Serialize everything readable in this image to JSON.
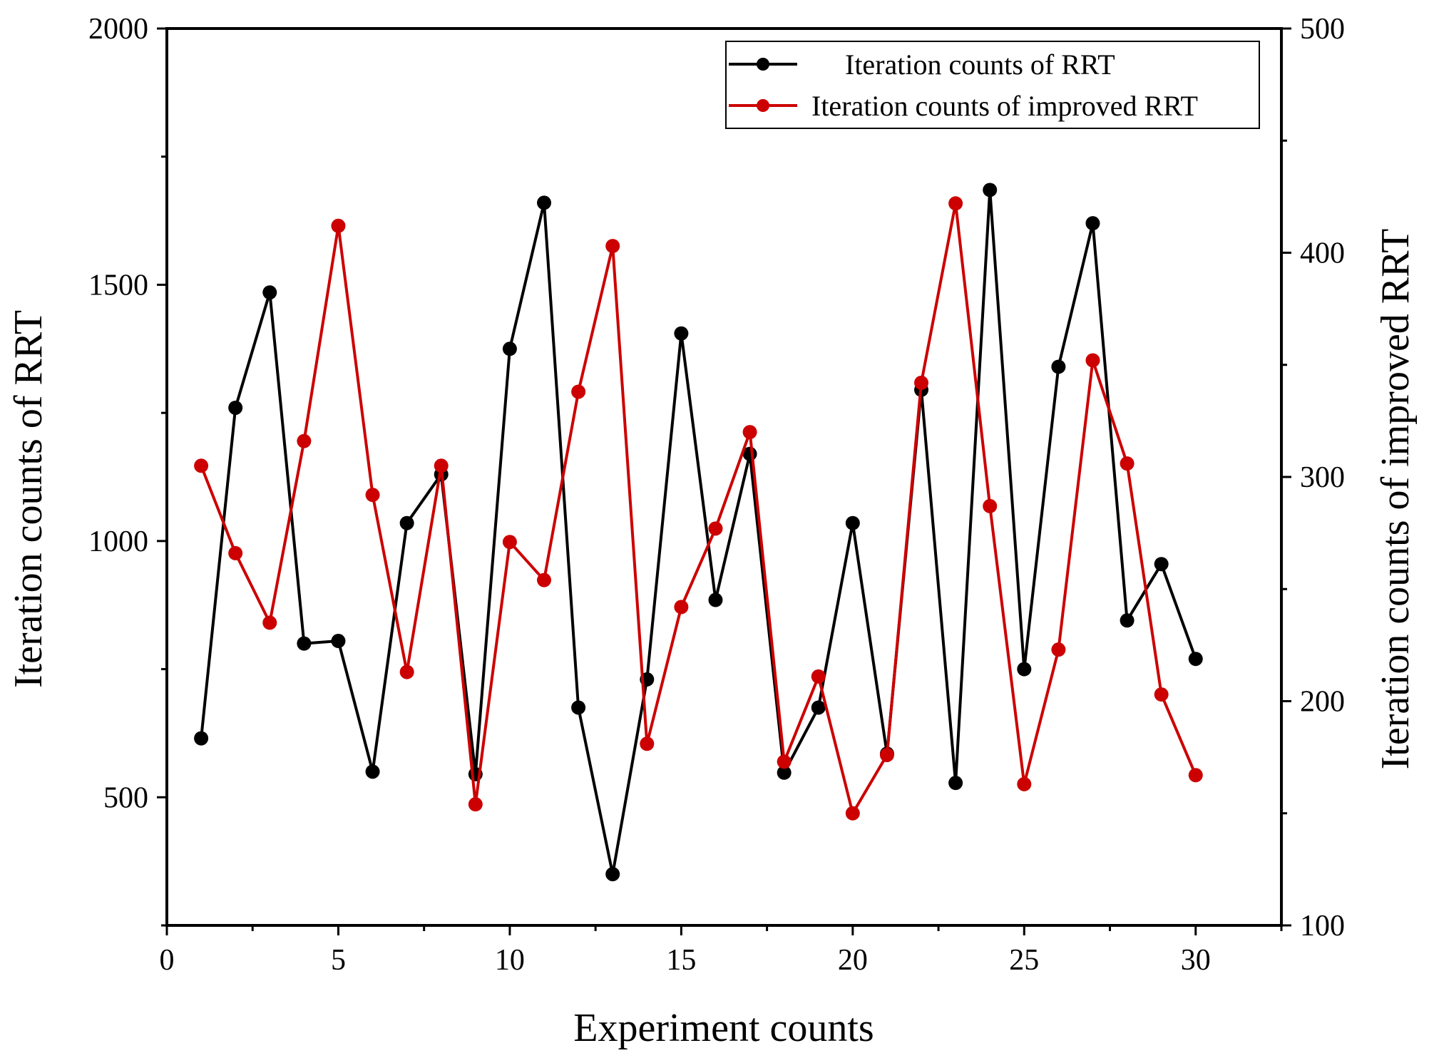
{
  "chart_data": {
    "type": "line",
    "title": "",
    "xlabel": "Experiment counts",
    "ylabel": "Iteration counts of RRT",
    "y2label": "Iteration counts of improved RRT",
    "xlim": [
      0,
      32.5
    ],
    "ylim": [
      250,
      2000
    ],
    "y2lim": [
      100,
      500
    ],
    "xticks": [
      0,
      5,
      10,
      15,
      20,
      25,
      30
    ],
    "yticks": [
      500,
      1000,
      1500,
      2000
    ],
    "y2ticks": [
      100,
      200,
      300,
      400,
      500
    ],
    "grid": false,
    "legend_position": "top-right",
    "series": [
      {
        "name": "Iteration counts of RRT",
        "axis": "left",
        "color": "#000000",
        "x": [
          1,
          2,
          3,
          4,
          5,
          6,
          7,
          8,
          9,
          10,
          11,
          12,
          13,
          14,
          15,
          16,
          17,
          18,
          19,
          20,
          21,
          22,
          23,
          24,
          25,
          26,
          27,
          28,
          29,
          30
        ],
        "values": [
          615,
          1260,
          1485,
          800,
          805,
          550,
          1035,
          1130,
          545,
          1375,
          1660,
          675,
          350,
          730,
          1405,
          885,
          1170,
          548,
          675,
          1035,
          585,
          1295,
          528,
          1685,
          750,
          1340,
          1620,
          845,
          955,
          770
        ]
      },
      {
        "name": "Iteration counts of improved RRT",
        "axis": "right",
        "color": "#cc0000",
        "x": [
          1,
          2,
          3,
          4,
          5,
          6,
          7,
          8,
          9,
          10,
          11,
          12,
          13,
          14,
          15,
          16,
          17,
          18,
          19,
          20,
          21,
          22,
          23,
          24,
          25,
          26,
          27,
          28,
          29,
          30
        ],
        "values": [
          305,
          266,
          235,
          316,
          412,
          292,
          213,
          305,
          154,
          271,
          254,
          338,
          403,
          181,
          242,
          277,
          320,
          173,
          211,
          150,
          176,
          342,
          422,
          287,
          163,
          223,
          352,
          306,
          203,
          167
        ]
      }
    ]
  }
}
